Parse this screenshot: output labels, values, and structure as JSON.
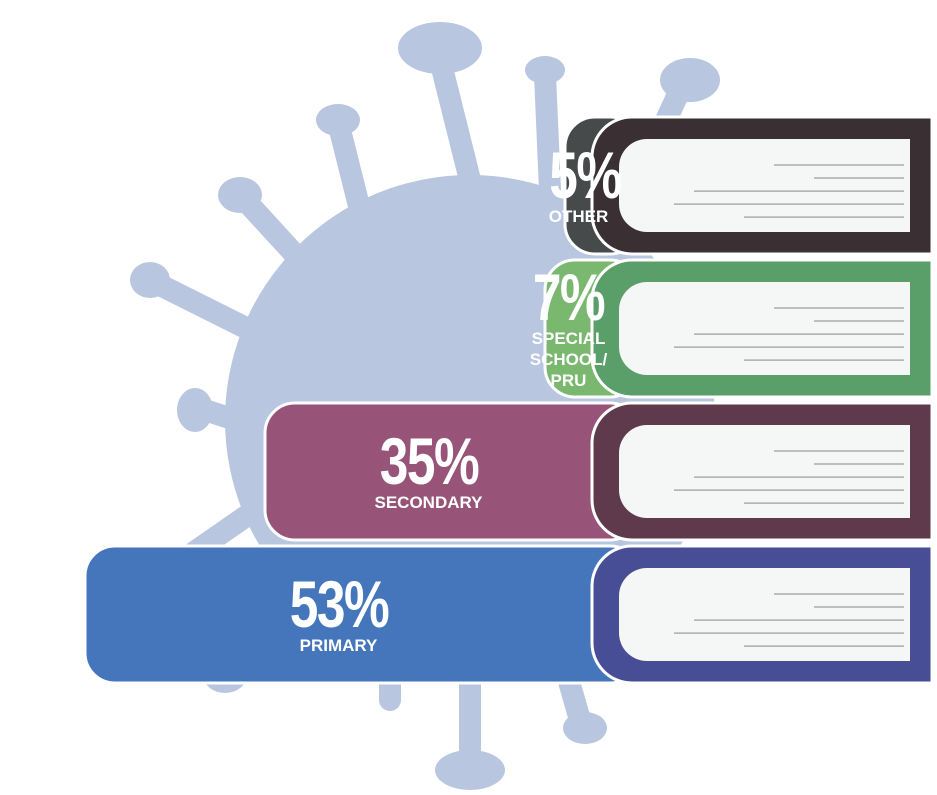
{
  "chart_data": {
    "type": "book-bar",
    "categories": [
      "OTHER",
      "SPECIAL SCHOOL/ PRU",
      "SECONDARY",
      "PRIMARY"
    ],
    "values": [
      5,
      7,
      35,
      53
    ],
    "value_labels": [
      "5%",
      "7%",
      "35%",
      "53%"
    ],
    "colors": [
      "#474a4a",
      "#7ab870",
      "#985478",
      "#4576bc"
    ],
    "cover_colors": [
      "#3a3033",
      "#5a9e6a",
      "#5f3a4c",
      "#474e96"
    ]
  }
}
